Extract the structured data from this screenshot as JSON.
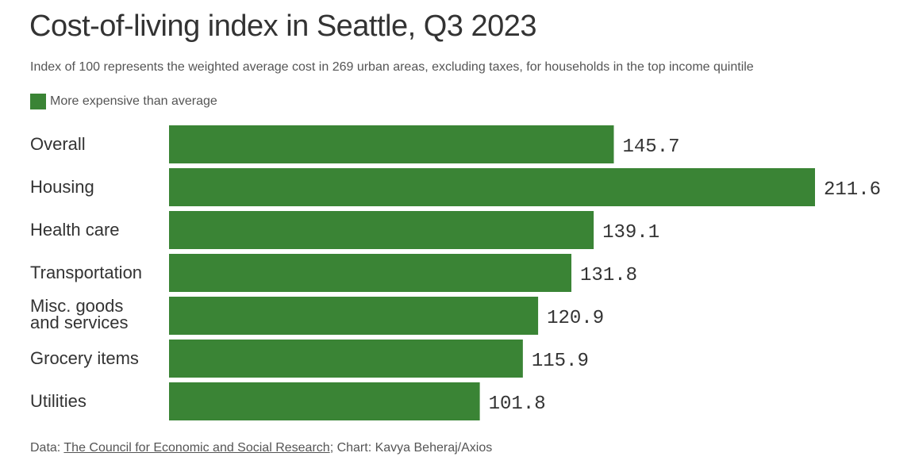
{
  "chart_data": {
    "type": "bar",
    "orientation": "horizontal",
    "title": "Cost-of-living index in Seattle, Q3 2023",
    "subtitle": "Index of 100 represents the weighted average cost in 269 urban areas, excluding taxes, for households in the top income quintile",
    "legend": {
      "position": "top-left",
      "entries": [
        {
          "name": "More expensive than average",
          "color": "#3a8435"
        }
      ]
    },
    "categories": [
      [
        "Overall"
      ],
      [
        "Housing"
      ],
      [
        "Health care"
      ],
      [
        "Transportation"
      ],
      [
        "Misc. goods",
        "and services"
      ],
      [
        "Grocery items"
      ],
      [
        "Utilities"
      ]
    ],
    "values": [
      145.7,
      211.6,
      139.1,
      131.8,
      120.9,
      115.9,
      101.8
    ],
    "value_labels": [
      "145.7",
      "211.6",
      "139.1",
      "131.8",
      "120.9",
      "115.9",
      "101.8"
    ],
    "xlim": [
      0,
      211.6
    ],
    "bar_color": "#3a8435",
    "grid": false
  },
  "footer": {
    "data_prefix": "Data: ",
    "source_link": "The Council for Economic and Social Research",
    "credit": "; Chart: Kavya Beheraj/Axios"
  }
}
